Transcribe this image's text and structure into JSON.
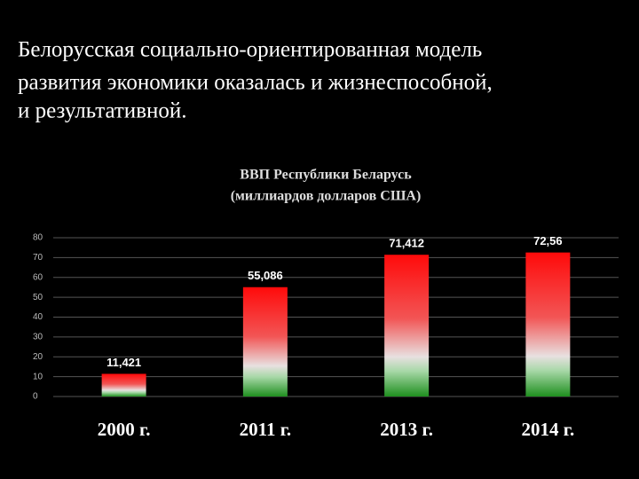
{
  "heading": [
    "Белорусская социально-ориентированная модель",
    "развития экономики оказалась и жизнеспособной,",
    "и результативной."
  ],
  "chart_data": {
    "type": "bar",
    "title": "ВВП Республики Беларусь",
    "subtitle": "(миллиардов долларов США)",
    "categories": [
      "2000 г.",
      "2011 г.",
      "2013 г.",
      "2014 г."
    ],
    "values": [
      11.421,
      55.086,
      71.412,
      72.56
    ],
    "value_labels": [
      "11,421",
      "55,086",
      "71,412",
      "72,56"
    ],
    "ylim": [
      0,
      80
    ],
    "yticks": [
      0,
      10,
      20,
      30,
      40,
      50,
      60,
      70,
      80
    ],
    "grid": true
  }
}
